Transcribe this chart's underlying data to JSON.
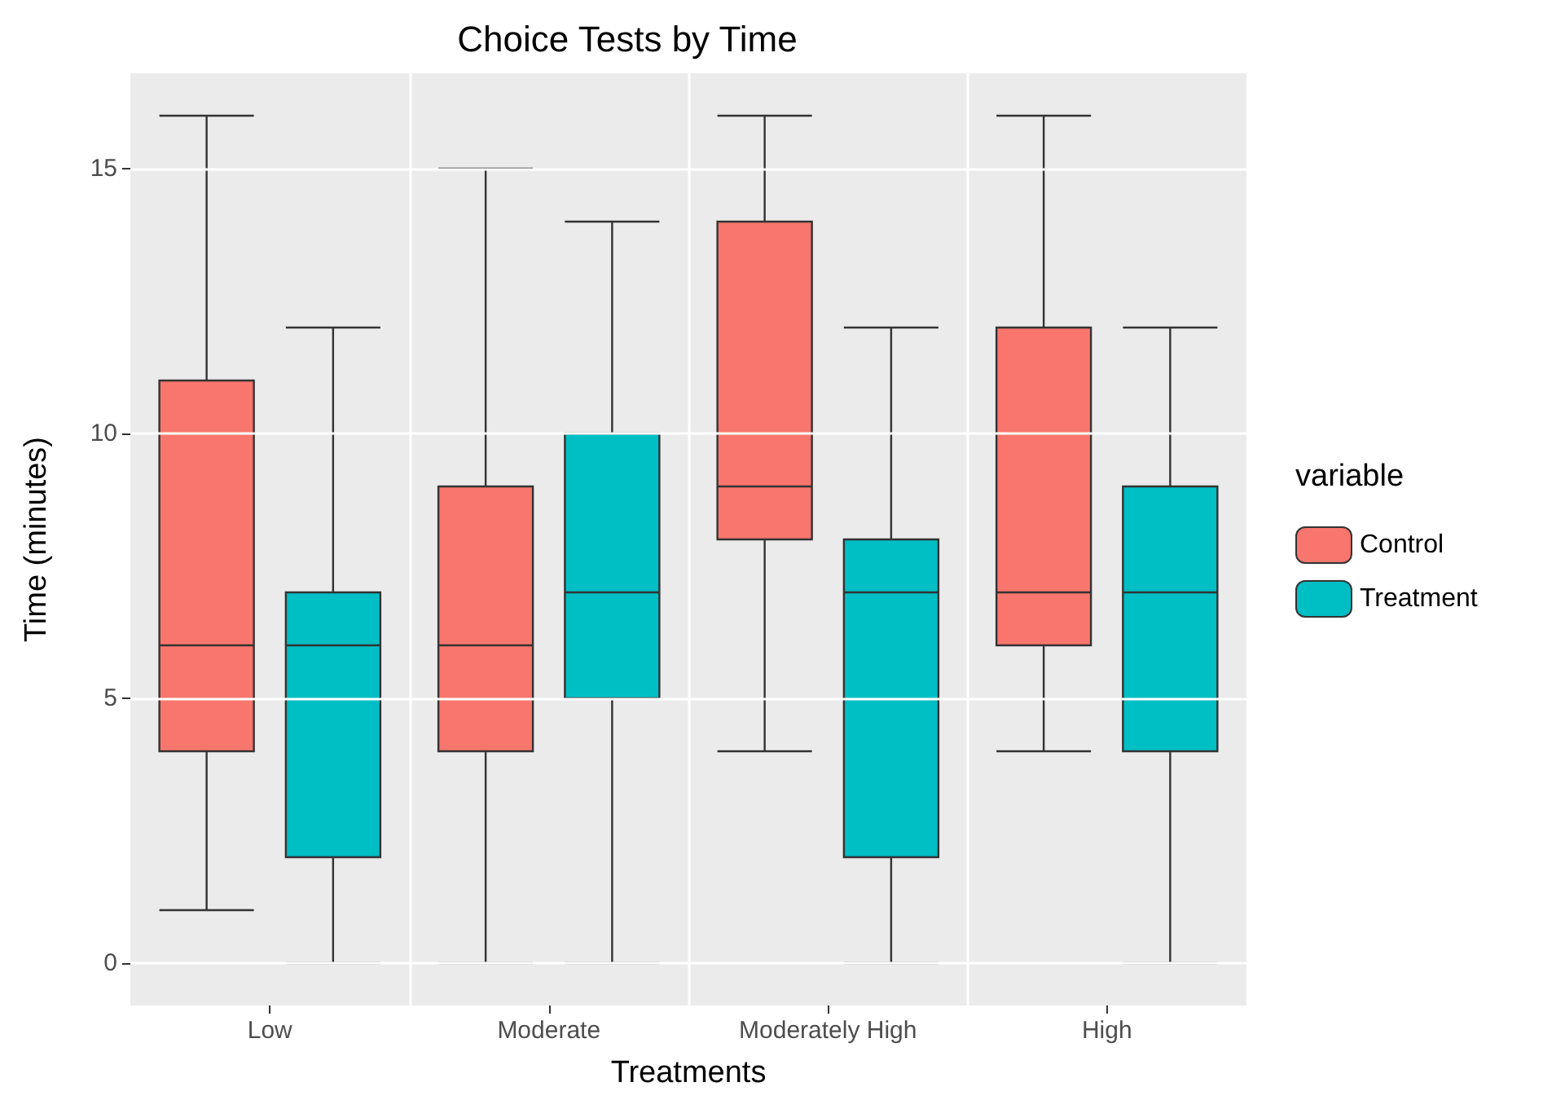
{
  "chart_data": {
    "type": "box",
    "title": "Choice Tests by Time",
    "xlabel": "Treatments",
    "ylabel": "Time (minutes)",
    "legend_title": "variable",
    "categories": [
      "Low",
      "Moderate",
      "Moderately High",
      "High"
    ],
    "series": [
      {
        "name": "Control",
        "color": "#f8766d",
        "boxes": [
          {
            "low": 1,
            "q1": 4,
            "median": 6,
            "q3": 11,
            "high": 16
          },
          {
            "low": 0,
            "q1": 4,
            "median": 6,
            "q3": 9,
            "high": 15
          },
          {
            "low": 4,
            "q1": 8,
            "median": 9,
            "q3": 14,
            "high": 16
          },
          {
            "low": 4,
            "q1": 6,
            "median": 7,
            "q3": 12,
            "high": 16
          }
        ]
      },
      {
        "name": "Treatment",
        "color": "#00bfc4",
        "boxes": [
          {
            "low": 0,
            "q1": 2,
            "median": 6,
            "q3": 7,
            "high": 12
          },
          {
            "low": 0,
            "q1": 5,
            "median": 7,
            "q3": 10,
            "high": 14
          },
          {
            "low": 0,
            "q1": 2,
            "median": 7,
            "q3": 8,
            "high": 12
          },
          {
            "low": 0,
            "q1": 4,
            "median": 7,
            "q3": 9,
            "high": 12
          }
        ]
      }
    ],
    "ylim": [
      -0.8,
      16.8
    ],
    "yticks": [
      0,
      5,
      10,
      15
    ],
    "grid": true,
    "legend": "right"
  }
}
